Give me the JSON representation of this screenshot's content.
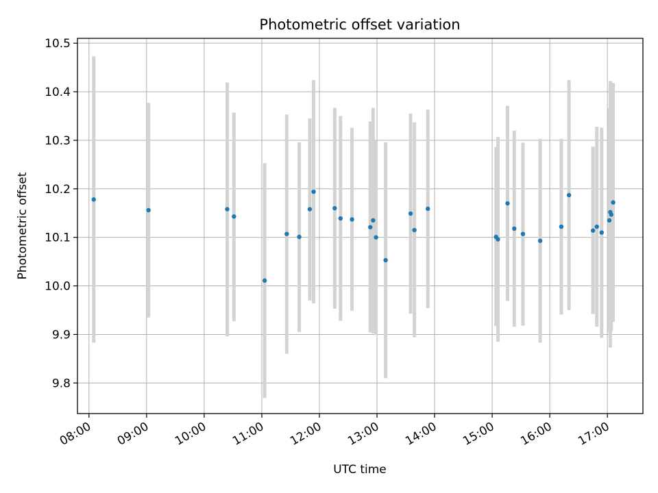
{
  "chart_data": {
    "type": "scatter",
    "title": "Photometric offset variation",
    "xlabel": "UTC time",
    "ylabel": "Photometric offset",
    "x_is_time": true,
    "xlim": [
      "07:48",
      "17:37"
    ],
    "ylim": [
      9.737,
      10.51
    ],
    "grid": true,
    "x_ticks": [
      "08:00",
      "09:00",
      "10:00",
      "11:00",
      "12:00",
      "13:00",
      "14:00",
      "15:00",
      "16:00",
      "17:00"
    ],
    "y_ticks": [
      "9.8",
      "9.9",
      "10.0",
      "10.1",
      "10.2",
      "10.3",
      "10.4",
      "10.5"
    ],
    "colors": {
      "marker": "#1f77b4",
      "errorbar": "#d3d3d3",
      "grid": "#b0b0b0"
    },
    "series": [
      {
        "points": [
          {
            "t": "08:05",
            "y": 10.178,
            "lo": 9.883,
            "hi": 10.473
          },
          {
            "t": "09:02",
            "y": 10.156,
            "lo": 9.935,
            "hi": 10.377
          },
          {
            "t": "10:24",
            "y": 10.158,
            "lo": 9.896,
            "hi": 10.419
          },
          {
            "t": "10:31",
            "y": 10.143,
            "lo": 9.927,
            "hi": 10.357
          },
          {
            "t": "11:03",
            "y": 10.011,
            "lo": 9.769,
            "hi": 10.253
          },
          {
            "t": "11:26",
            "y": 10.107,
            "lo": 9.86,
            "hi": 10.353
          },
          {
            "t": "11:39",
            "y": 10.101,
            "lo": 9.905,
            "hi": 10.296
          },
          {
            "t": "11:50",
            "y": 10.158,
            "lo": 9.97,
            "hi": 10.345
          },
          {
            "t": "11:54",
            "y": 10.194,
            "lo": 9.964,
            "hi": 10.424
          },
          {
            "t": "12:16",
            "y": 10.16,
            "lo": 9.953,
            "hi": 10.367
          },
          {
            "t": "12:22",
            "y": 10.139,
            "lo": 9.928,
            "hi": 10.35
          },
          {
            "t": "12:34",
            "y": 10.137,
            "lo": 9.949,
            "hi": 10.326
          },
          {
            "t": "12:53",
            "y": 10.121,
            "lo": 9.904,
            "hi": 10.339
          },
          {
            "t": "12:56",
            "y": 10.135,
            "lo": 9.902,
            "hi": 10.367
          },
          {
            "t": "12:59",
            "y": 10.1,
            "lo": 9.899,
            "hi": 10.3
          },
          {
            "t": "13:09",
            "y": 10.053,
            "lo": 9.81,
            "hi": 10.296
          },
          {
            "t": "13:35",
            "y": 10.149,
            "lo": 9.943,
            "hi": 10.355
          },
          {
            "t": "13:39",
            "y": 10.115,
            "lo": 9.894,
            "hi": 10.337
          },
          {
            "t": "13:53",
            "y": 10.159,
            "lo": 9.954,
            "hi": 10.363
          },
          {
            "t": "15:04",
            "y": 10.101,
            "lo": 9.917,
            "hi": 10.286
          },
          {
            "t": "15:06",
            "y": 10.096,
            "lo": 9.885,
            "hi": 10.307
          },
          {
            "t": "15:16",
            "y": 10.17,
            "lo": 9.969,
            "hi": 10.371
          },
          {
            "t": "15:23",
            "y": 10.118,
            "lo": 9.916,
            "hi": 10.32
          },
          {
            "t": "15:32",
            "y": 10.107,
            "lo": 9.918,
            "hi": 10.295
          },
          {
            "t": "15:50",
            "y": 10.093,
            "lo": 9.883,
            "hi": 10.303
          },
          {
            "t": "16:12",
            "y": 10.122,
            "lo": 9.941,
            "hi": 10.303
          },
          {
            "t": "16:20",
            "y": 10.187,
            "lo": 9.95,
            "hi": 10.424
          },
          {
            "t": "16:45",
            "y": 10.114,
            "lo": 9.942,
            "hi": 10.287
          },
          {
            "t": "16:49",
            "y": 10.122,
            "lo": 9.916,
            "hi": 10.328
          },
          {
            "t": "16:54",
            "y": 10.11,
            "lo": 9.893,
            "hi": 10.326
          },
          {
            "t": "17:02",
            "y": 10.135,
            "lo": 9.905,
            "hi": 10.366
          },
          {
            "t": "17:03",
            "y": 10.152,
            "lo": 9.873,
            "hi": 10.422
          },
          {
            "t": "17:04",
            "y": 10.147,
            "lo": 9.907,
            "hi": 10.387
          },
          {
            "t": "17:06",
            "y": 10.172,
            "lo": 9.926,
            "hi": 10.418
          }
        ]
      }
    ]
  }
}
